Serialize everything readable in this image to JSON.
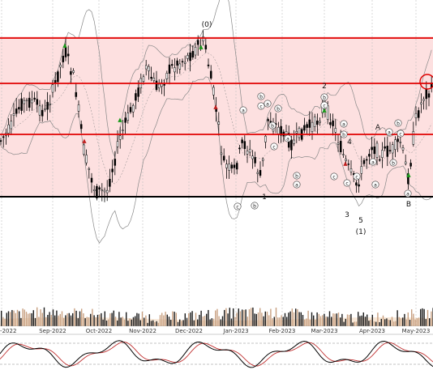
{
  "chart_data": {
    "type": "candlestick",
    "x_axis": {
      "tick_labels": [
        "p-2022",
        "Sep-2022",
        "Oct-2022",
        "Nov-2022",
        "Dec-2022",
        "Jan-2023",
        "Feb-2023",
        "Mar-2023",
        "Apr-2023",
        "May-2023"
      ]
    },
    "wave_labels": [
      {
        "text": "(0)"
      },
      {
        "text": "2"
      },
      {
        "text": "1"
      },
      {
        "text": "3"
      },
      {
        "text": "4"
      },
      {
        "text": "5"
      },
      {
        "text": "(1)"
      },
      {
        "text": "A"
      },
      {
        "text": "B"
      }
    ],
    "circled_labels": [
      "a",
      "b",
      "c",
      "a",
      "b",
      "c",
      "a",
      "b",
      "a",
      "b",
      "c",
      "a",
      "c",
      "b",
      "b",
      "c",
      "a",
      "c",
      "a",
      "b",
      "b",
      "a",
      "c",
      "b",
      "c",
      "a"
    ],
    "colors": {
      "band_fill": "#fde0e0",
      "level_lines": "#e00000",
      "candle": "#000000",
      "bollinger": "#888888",
      "volume_up": "#1a1a1a",
      "volume_down": "#c8a080",
      "volume_fill": "#f2d6b8",
      "oscillator_main": "#000000",
      "oscillator_signal": "#c03030",
      "grid": "#c0c0c0"
    },
    "panels": [
      "price",
      "volume",
      "oscillator"
    ]
  }
}
